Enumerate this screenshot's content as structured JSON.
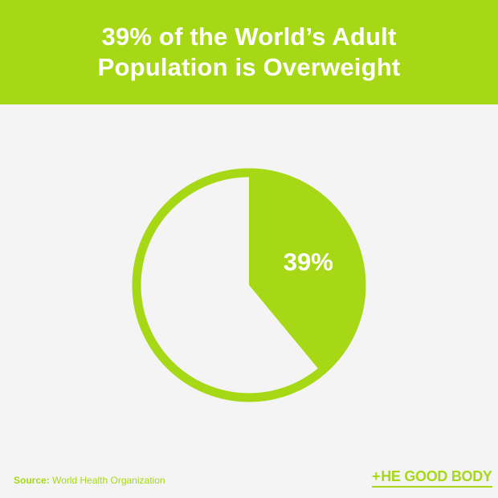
{
  "header": {
    "title_line1": "39% of the World’s Adult",
    "title_line2": "Population is Overweight"
  },
  "colors": {
    "accent": "#a6d816",
    "background": "#f4f4f4",
    "header_text": "#ffffff"
  },
  "chart_data": {
    "type": "pie",
    "title": "39% of the World’s Adult Population is Overweight",
    "slices": [
      {
        "value": 39,
        "label": "39%",
        "color": "#a6d816"
      },
      {
        "value": 61,
        "label": "",
        "color": "#f4f4f4"
      }
    ]
  },
  "footer": {
    "source_label": "Source:",
    "source_text": "World Health Organization",
    "brand_plus": "+",
    "brand_name": "HE GOOD BODY"
  }
}
